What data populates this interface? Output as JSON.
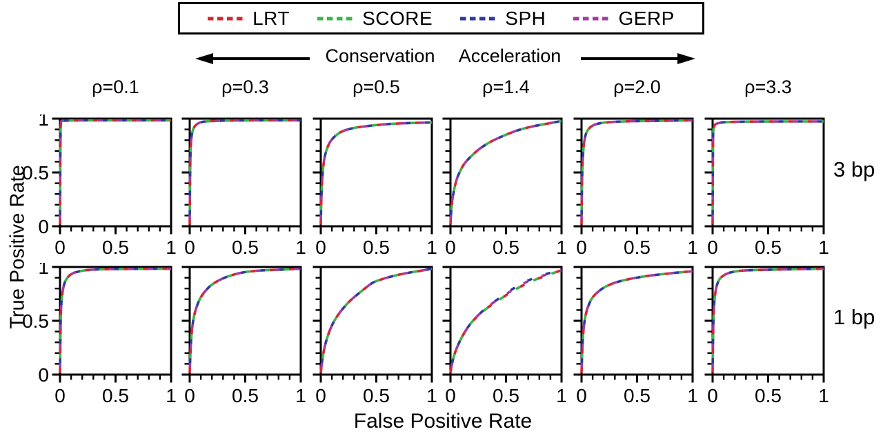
{
  "chart_data": {
    "type": "line",
    "description": "Grid of ROC curve panels comparing four conservation/acceleration test statistics across values of rho, for 3 bp and 1 bp elements. All four methods produce nearly identical overlapping dashed curves in every panel.",
    "xlabel": "False Positive Rate",
    "ylabel": "True Positive Rate",
    "xlim": [
      0,
      1
    ],
    "ylim": [
      0,
      1
    ],
    "xticks": [
      0,
      0.5,
      1
    ],
    "xtick_labels": [
      "0",
      "0.5",
      "1"
    ],
    "yticks": [
      0,
      0.5,
      1
    ],
    "ytick_labels": [
      "0",
      "0.5",
      "1"
    ],
    "minor_tick_step": 0.1,
    "grid": false,
    "legend_position": "top",
    "series": [
      {
        "name": "LRT",
        "color": "#d4272e",
        "dashed": true
      },
      {
        "name": "SCORE",
        "color": "#3ab54a",
        "dashed": true
      },
      {
        "name": "SPH",
        "color": "#2c3b9d",
        "dashed": true
      },
      {
        "name": "GERP",
        "color": "#a23ba3",
        "dashed": true
      }
    ],
    "column_axis_annotation": {
      "left": "Conservation",
      "right": "Acceleration"
    },
    "columns": [
      "ρ=0.1",
      "ρ=0.3",
      "ρ=0.5",
      "ρ=1.4",
      "ρ=2.0",
      "ρ=3.3"
    ],
    "rows": [
      {
        "label": "3 bp",
        "panels": [
          {
            "column": "ρ=0.1",
            "roc_points": [
              [
                0,
                0
              ],
              [
                0.004,
                0.9
              ],
              [
                0.008,
                0.99
              ],
              [
                0.02,
                1
              ],
              [
                0.5,
                1
              ],
              [
                1,
                1
              ]
            ]
          },
          {
            "column": "ρ=0.3",
            "roc_points": [
              [
                0,
                0
              ],
              [
                0.004,
                0.55
              ],
              [
                0.01,
                0.78
              ],
              [
                0.02,
                0.88
              ],
              [
                0.04,
                0.94
              ],
              [
                0.07,
                0.97
              ],
              [
                0.12,
                0.99
              ],
              [
                0.3,
                1
              ],
              [
                1,
                1
              ]
            ]
          },
          {
            "column": "ρ=0.5",
            "roc_points": [
              [
                0,
                0
              ],
              [
                0.005,
                0.3
              ],
              [
                0.02,
                0.55
              ],
              [
                0.04,
                0.68
              ],
              [
                0.07,
                0.77
              ],
              [
                0.1,
                0.82
              ],
              [
                0.15,
                0.87
              ],
              [
                0.2,
                0.9
              ],
              [
                0.3,
                0.93
              ],
              [
                0.45,
                0.95
              ],
              [
                0.6,
                0.965
              ],
              [
                0.8,
                0.975
              ],
              [
                1,
                0.98
              ]
            ]
          },
          {
            "column": "ρ=1.4",
            "roc_points": [
              [
                0,
                0
              ],
              [
                0.005,
                0.12
              ],
              [
                0.02,
                0.27
              ],
              [
                0.05,
                0.42
              ],
              [
                0.08,
                0.5
              ],
              [
                0.12,
                0.58
              ],
              [
                0.17,
                0.64
              ],
              [
                0.25,
                0.72
              ],
              [
                0.35,
                0.79
              ],
              [
                0.45,
                0.84
              ],
              [
                0.55,
                0.885
              ],
              [
                0.65,
                0.92
              ],
              [
                0.75,
                0.945
              ],
              [
                0.85,
                0.965
              ],
              [
                0.93,
                0.98
              ],
              [
                1,
                0.995
              ]
            ]
          },
          {
            "column": "ρ=2.0",
            "roc_points": [
              [
                0,
                0
              ],
              [
                0.004,
                0.45
              ],
              [
                0.015,
                0.72
              ],
              [
                0.03,
                0.84
              ],
              [
                0.05,
                0.9
              ],
              [
                0.08,
                0.94
              ],
              [
                0.13,
                0.965
              ],
              [
                0.2,
                0.98
              ],
              [
                0.35,
                0.99
              ],
              [
                0.6,
                0.995
              ],
              [
                1,
                1
              ]
            ]
          },
          {
            "column": "ρ=3.3",
            "roc_points": [
              [
                0,
                0
              ],
              [
                0.003,
                0.85
              ],
              [
                0.008,
                0.93
              ],
              [
                0.02,
                0.96
              ],
              [
                0.05,
                0.975
              ],
              [
                0.12,
                0.985
              ],
              [
                0.4,
                0.99
              ],
              [
                1,
                0.99
              ]
            ]
          }
        ]
      },
      {
        "label": "1 bp",
        "panels": [
          {
            "column": "ρ=0.1",
            "roc_points": [
              [
                0,
                0
              ],
              [
                0.005,
                0.5
              ],
              [
                0.012,
                0.68
              ],
              [
                0.025,
                0.8
              ],
              [
                0.045,
                0.88
              ],
              [
                0.07,
                0.92
              ],
              [
                0.1,
                0.95
              ],
              [
                0.15,
                0.97
              ],
              [
                0.25,
                0.99
              ],
              [
                0.45,
                0.997
              ],
              [
                1,
                1
              ]
            ]
          },
          {
            "column": "ρ=0.3",
            "roc_points": [
              [
                0,
                0
              ],
              [
                0.008,
                0.25
              ],
              [
                0.02,
                0.42
              ],
              [
                0.04,
                0.56
              ],
              [
                0.07,
                0.66
              ],
              [
                0.1,
                0.73
              ],
              [
                0.15,
                0.8
              ],
              [
                0.2,
                0.85
              ],
              [
                0.28,
                0.9
              ],
              [
                0.38,
                0.94
              ],
              [
                0.5,
                0.97
              ],
              [
                0.65,
                0.985
              ],
              [
                0.8,
                0.99
              ],
              [
                1,
                1
              ]
            ]
          },
          {
            "column": "ρ=0.5",
            "roc_points": [
              [
                0,
                0
              ],
              [
                0.01,
                0.1
              ],
              [
                0.03,
                0.23
              ],
              [
                0.06,
                0.35
              ],
              [
                0.1,
                0.46
              ],
              [
                0.15,
                0.55
              ],
              [
                0.2,
                0.62
              ],
              [
                0.27,
                0.7
              ],
              [
                0.35,
                0.77
              ],
              [
                0.42,
                0.83
              ],
              [
                0.47,
                0.87
              ],
              [
                0.55,
                0.9
              ],
              [
                0.65,
                0.93
              ],
              [
                0.78,
                0.96
              ],
              [
                0.9,
                0.98
              ],
              [
                1,
                1
              ]
            ]
          },
          {
            "column": "ρ=1.4",
            "roc_points": [
              [
                0,
                0
              ],
              [
                0.01,
                0.07
              ],
              [
                0.03,
                0.16
              ],
              [
                0.06,
                0.25
              ],
              [
                0.1,
                0.34
              ],
              [
                0.15,
                0.43
              ],
              [
                0.2,
                0.5
              ],
              [
                0.27,
                0.57
              ],
              [
                0.35,
                0.64
              ],
              [
                0.45,
                0.71
              ],
              [
                0.55,
                0.78
              ],
              [
                0.65,
                0.84
              ],
              [
                0.75,
                0.89
              ],
              [
                0.85,
                0.93
              ],
              [
                0.93,
                0.96
              ],
              [
                1,
                0.985
              ]
            ],
            "series_overrides": {
              "SPH": [
                [
                  0,
                  0
                ],
                [
                  0.01,
                  0.07
                ],
                [
                  0.03,
                  0.16
                ],
                [
                  0.06,
                  0.25
                ],
                [
                  0.1,
                  0.34
                ],
                [
                  0.15,
                  0.43
                ],
                [
                  0.2,
                  0.5
                ],
                [
                  0.27,
                  0.575
                ],
                [
                  0.35,
                  0.65
                ],
                [
                  0.45,
                  0.725
                ],
                [
                  0.55,
                  0.8
                ],
                [
                  0.65,
                  0.865
                ],
                [
                  0.75,
                  0.91
                ],
                [
                  0.85,
                  0.945
                ],
                [
                  0.93,
                  0.97
                ],
                [
                  1,
                  0.985
                ]
              ],
              "GERP": [
                [
                  0,
                  0
                ],
                [
                  0.01,
                  0.07
                ],
                [
                  0.03,
                  0.16
                ],
                [
                  0.06,
                  0.25
                ],
                [
                  0.1,
                  0.34
                ],
                [
                  0.15,
                  0.43
                ],
                [
                  0.2,
                  0.5
                ],
                [
                  0.27,
                  0.575
                ],
                [
                  0.35,
                  0.65
                ],
                [
                  0.45,
                  0.72
                ],
                [
                  0.55,
                  0.79
                ],
                [
                  0.65,
                  0.855
                ],
                [
                  0.75,
                  0.905
                ],
                [
                  0.85,
                  0.94
                ],
                [
                  0.93,
                  0.965
                ],
                [
                  1,
                  0.985
                ]
              ]
            }
          },
          {
            "column": "ρ=2.0",
            "roc_points": [
              [
                0,
                0
              ],
              [
                0.008,
                0.28
              ],
              [
                0.02,
                0.45
              ],
              [
                0.04,
                0.58
              ],
              [
                0.07,
                0.67
              ],
              [
                0.1,
                0.73
              ],
              [
                0.15,
                0.78
              ],
              [
                0.2,
                0.82
              ],
              [
                0.28,
                0.86
              ],
              [
                0.38,
                0.89
              ],
              [
                0.5,
                0.915
              ],
              [
                0.62,
                0.935
              ],
              [
                0.75,
                0.95
              ],
              [
                0.88,
                0.965
              ],
              [
                1,
                0.975
              ]
            ]
          },
          {
            "column": "ρ=3.3",
            "roc_points": [
              [
                0,
                0
              ],
              [
                0.005,
                0.45
              ],
              [
                0.012,
                0.65
              ],
              [
                0.025,
                0.78
              ],
              [
                0.04,
                0.85
              ],
              [
                0.06,
                0.9
              ],
              [
                0.09,
                0.93
              ],
              [
                0.13,
                0.955
              ],
              [
                0.2,
                0.975
              ],
              [
                0.3,
                0.985
              ],
              [
                0.5,
                0.99
              ],
              [
                0.75,
                0.995
              ],
              [
                1,
                1
              ]
            ]
          }
        ]
      }
    ],
    "note": "All four methods (LRT, SCORE, SPH, GERP) overlap almost completely; curves are drawn as interleaved colored dashes. In the 1 bp ρ=1.4 panel SPH/GERP sit slightly above LRT/SCORE for FPR > 0.5."
  }
}
